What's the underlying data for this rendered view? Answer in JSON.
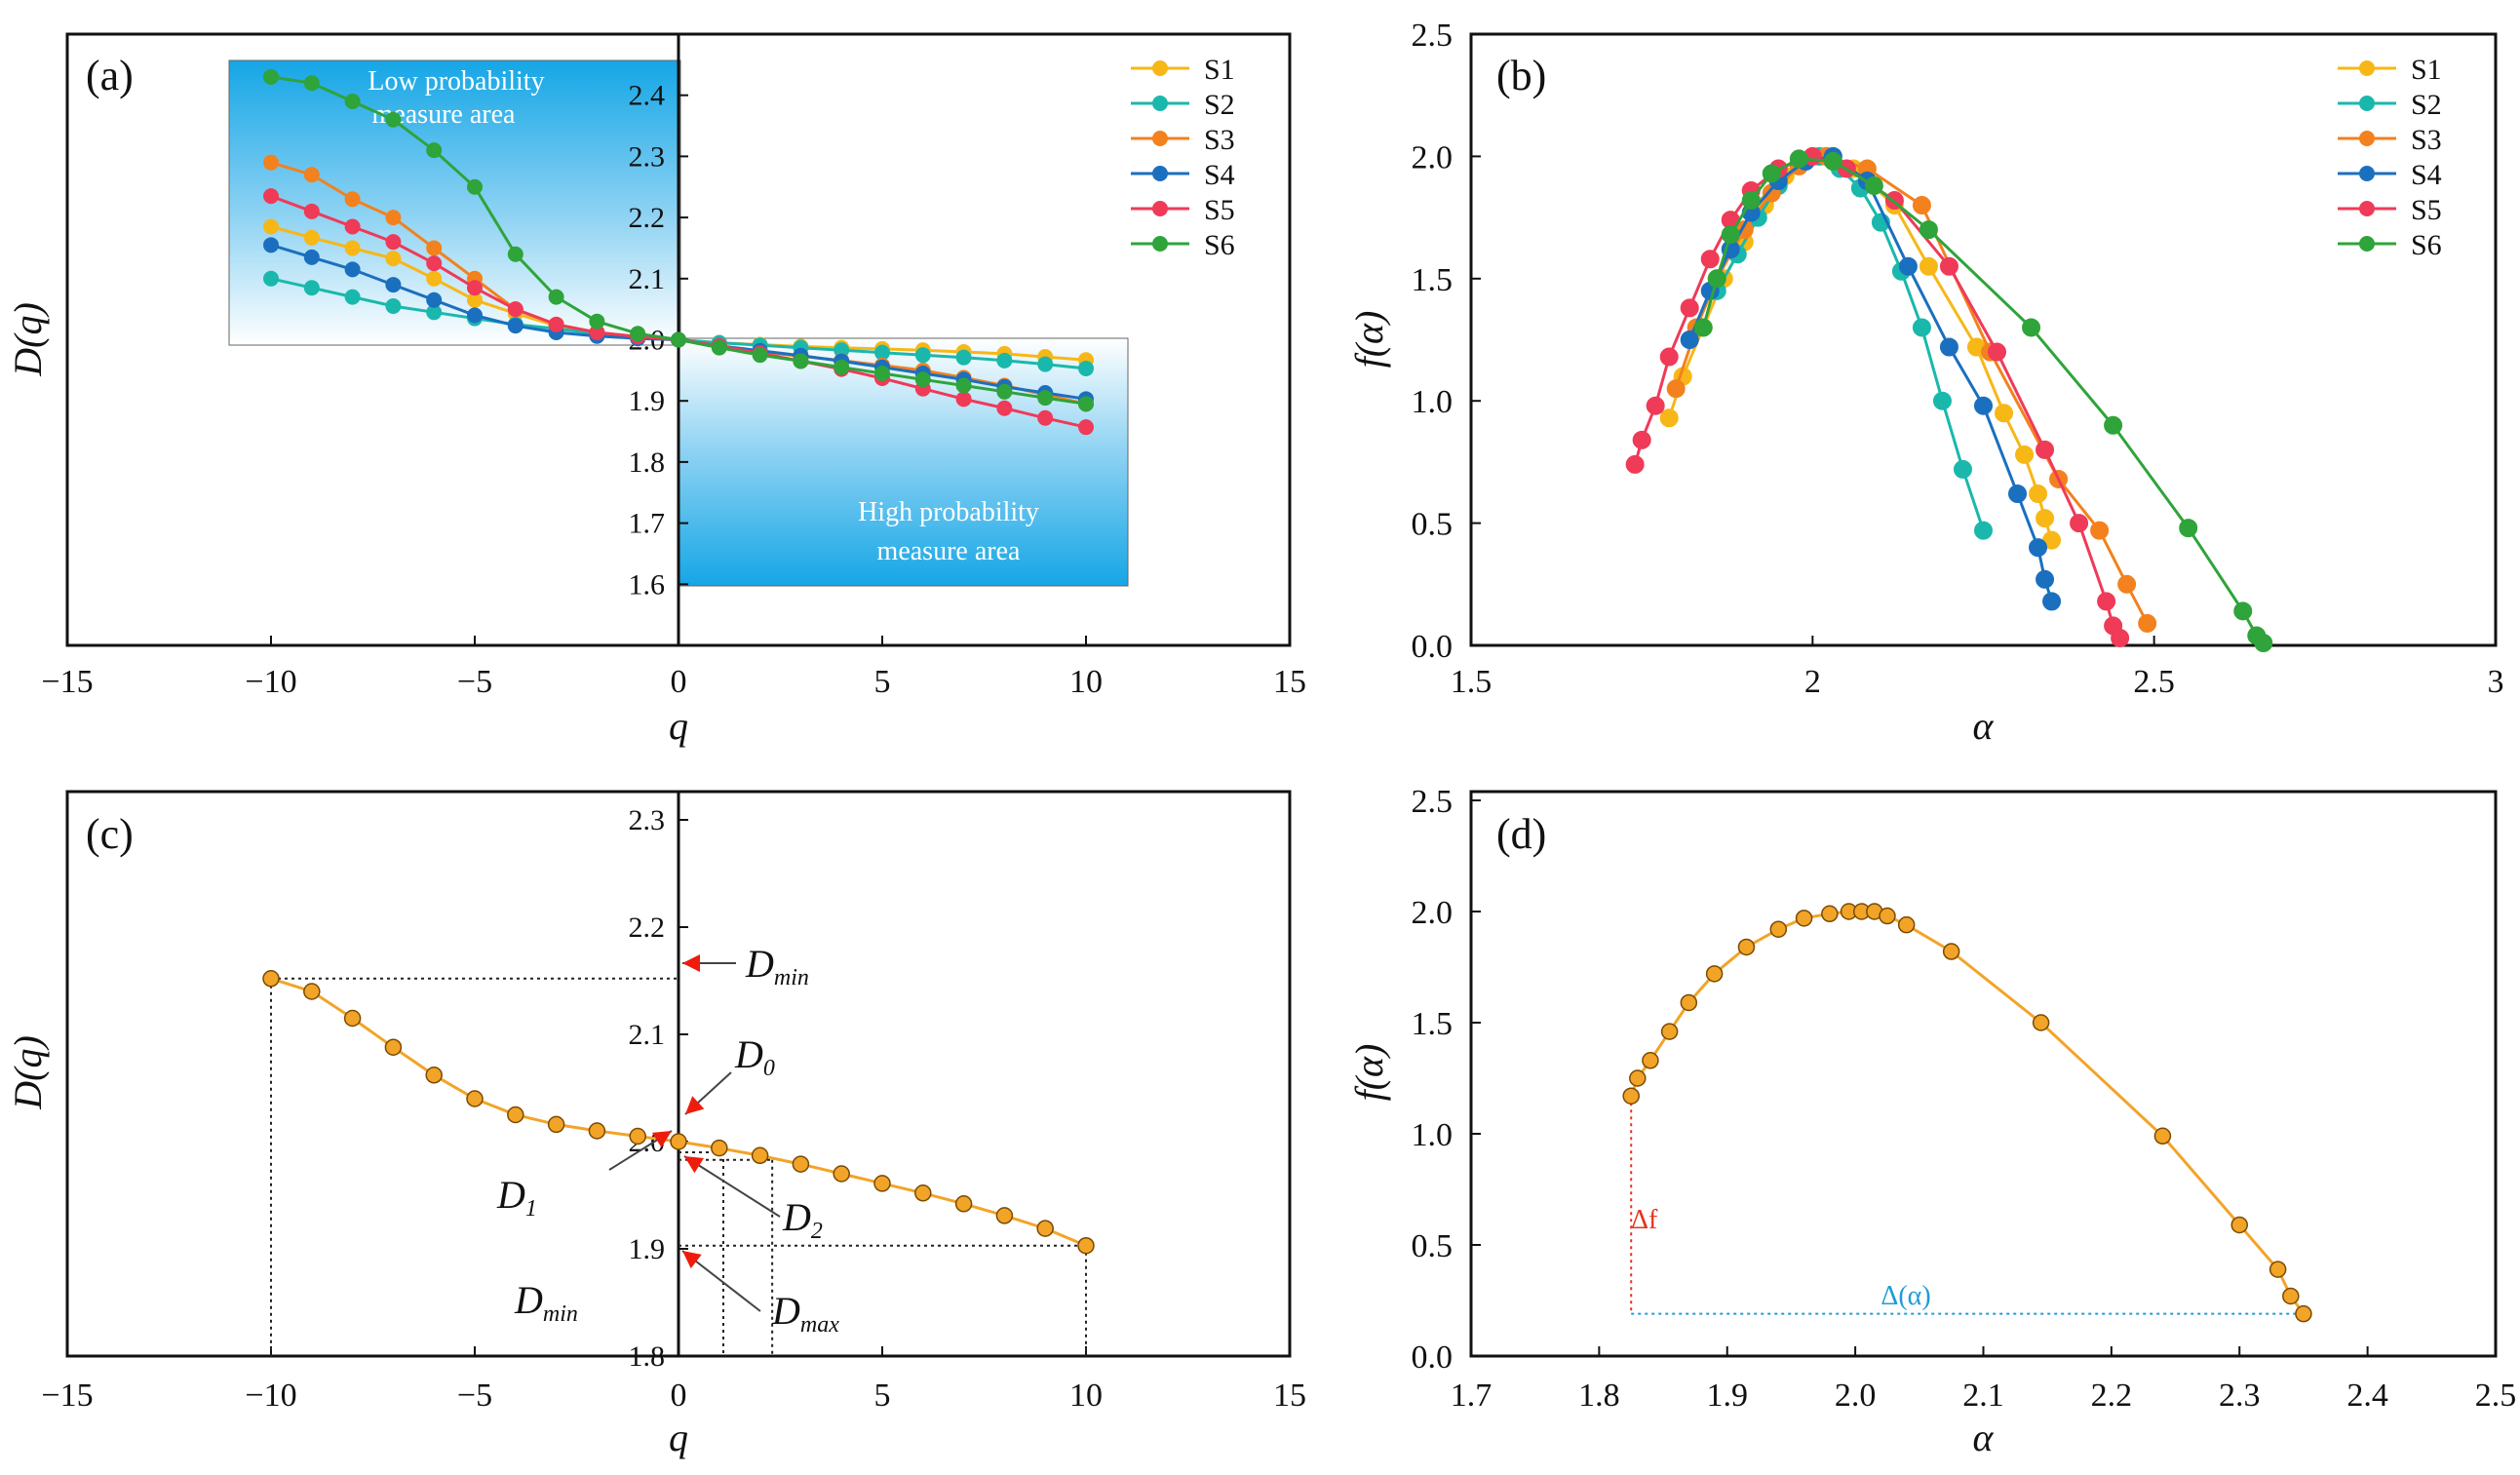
{
  "colors": {
    "S1": "#f7b717",
    "S2": "#1ab8ac",
    "S3": "#f3811e",
    "S4": "#1b6fbf",
    "S5": "#ef3a58",
    "S6": "#2ea43a",
    "single": "#f2a428",
    "arrow": "#ee1c0c",
    "df": "#e8321c",
    "dalpha": "#1f9bd8"
  },
  "chart_data": [
    {
      "panel": "(a)",
      "type": "line",
      "xlabel": "q",
      "ylabel": "D(q)",
      "xlim": [
        -15,
        15
      ],
      "ylim": [
        1.5,
        2.5
      ],
      "xticks": [
        "−15",
        "−10",
        "−5",
        "0",
        "5",
        "10",
        "15"
      ],
      "inner_yticks": [
        "1.6",
        "1.7",
        "1.8",
        "1.9",
        "2.0",
        "2.1",
        "2.2",
        "2.3",
        "2.4"
      ],
      "annotations": [
        "Low probability",
        "measure area",
        "High probability",
        "measure area"
      ],
      "x": [
        -10,
        -9,
        -8,
        -7,
        -6,
        -5,
        -4,
        -3,
        -2,
        -1,
        0,
        1,
        2,
        3,
        4,
        5,
        6,
        7,
        8,
        9,
        10
      ],
      "series": [
        {
          "name": "S1",
          "values": [
            2.185,
            2.167,
            2.15,
            2.133,
            2.1,
            2.065,
            2.043,
            2.023,
            2.012,
            2.005,
            2.0,
            1.995,
            1.992,
            1.989,
            1.987,
            1.985,
            1.983,
            1.98,
            1.977,
            1.972,
            1.967
          ]
        },
        {
          "name": "S2",
          "values": [
            2.1,
            2.085,
            2.07,
            2.055,
            2.045,
            2.035,
            2.025,
            2.018,
            2.01,
            2.004,
            2.0,
            1.995,
            1.991,
            1.987,
            1.983,
            1.979,
            1.975,
            1.971,
            1.966,
            1.96,
            1.953
          ]
        },
        {
          "name": "S3",
          "values": [
            2.29,
            2.27,
            2.23,
            2.2,
            2.15,
            2.1,
            2.05,
            2.025,
            2.012,
            2.005,
            2.0,
            1.99,
            1.98,
            1.973,
            1.966,
            1.958,
            1.95,
            1.938,
            1.925,
            1.91,
            1.895
          ]
        },
        {
          "name": "S4",
          "values": [
            2.155,
            2.135,
            2.115,
            2.09,
            2.065,
            2.04,
            2.023,
            2.012,
            2.006,
            2.002,
            2.0,
            1.99,
            1.982,
            1.974,
            1.965,
            1.955,
            1.945,
            1.935,
            1.923,
            1.913,
            1.903
          ]
        },
        {
          "name": "S5",
          "values": [
            2.235,
            2.21,
            2.185,
            2.16,
            2.125,
            2.085,
            2.05,
            2.025,
            2.012,
            2.005,
            2.0,
            1.99,
            1.978,
            1.965,
            1.952,
            1.937,
            1.92,
            1.903,
            1.888,
            1.872,
            1.857
          ]
        },
        {
          "name": "S6",
          "values": [
            2.43,
            2.42,
            2.39,
            2.36,
            2.31,
            2.25,
            2.14,
            2.07,
            2.03,
            2.01,
            2.0,
            1.987,
            1.975,
            1.965,
            1.955,
            1.945,
            1.935,
            1.925,
            1.915,
            1.905,
            1.895
          ]
        }
      ]
    },
    {
      "panel": "(b)",
      "type": "line",
      "xlabel": "α",
      "ylabel": "f(α)",
      "xlim": [
        1.5,
        3
      ],
      "ylim": [
        0,
        2.5
      ],
      "xticks": [
        "1.5",
        "2",
        "2.5",
        "3"
      ],
      "yticks": [
        "0.0",
        "0.5",
        "1.0",
        "1.5",
        "2.0",
        "2.5"
      ],
      "series": [
        {
          "name": "S1",
          "x": [
            1.79,
            1.81,
            1.84,
            1.87,
            1.9,
            1.93,
            1.96,
            1.99,
            2.02,
            2.06,
            2.12,
            2.17,
            2.24,
            2.28,
            2.31,
            2.33,
            2.34,
            2.35
          ],
          "y": [
            0.93,
            1.1,
            1.3,
            1.5,
            1.65,
            1.8,
            1.92,
            1.98,
            2.0,
            1.95,
            1.8,
            1.55,
            1.22,
            0.95,
            0.78,
            0.62,
            0.52,
            0.43
          ]
        },
        {
          "name": "S2",
          "x": [
            1.86,
            1.89,
            1.92,
            1.95,
            1.98,
            2.01,
            2.04,
            2.07,
            2.1,
            2.13,
            2.16,
            2.19,
            2.22,
            2.25
          ],
          "y": [
            1.45,
            1.6,
            1.75,
            1.88,
            1.97,
            2.0,
            1.95,
            1.87,
            1.73,
            1.53,
            1.3,
            1.0,
            0.72,
            0.47
          ]
        },
        {
          "name": "S3",
          "x": [
            1.8,
            1.83,
            1.86,
            1.9,
            1.94,
            1.98,
            2.02,
            2.08,
            2.16,
            2.26,
            2.36,
            2.42,
            2.46,
            2.49
          ],
          "y": [
            1.05,
            1.3,
            1.5,
            1.7,
            1.85,
            1.96,
            2.0,
            1.95,
            1.8,
            1.2,
            0.68,
            0.47,
            0.25,
            0.09
          ]
        },
        {
          "name": "S4",
          "x": [
            1.82,
            1.85,
            1.88,
            1.91,
            1.95,
            1.99,
            2.03,
            2.08,
            2.14,
            2.2,
            2.25,
            2.3,
            2.33,
            2.34,
            2.35
          ],
          "y": [
            1.25,
            1.45,
            1.62,
            1.77,
            1.9,
            1.98,
            2.0,
            1.9,
            1.55,
            1.22,
            0.98,
            0.62,
            0.4,
            0.27,
            0.18
          ]
        },
        {
          "name": "S5",
          "x": [
            1.74,
            1.75,
            1.77,
            1.79,
            1.82,
            1.85,
            1.88,
            1.91,
            1.95,
            2.0,
            2.05,
            2.12,
            2.2,
            2.27,
            2.34,
            2.39,
            2.43,
            2.44,
            2.45
          ],
          "y": [
            0.74,
            0.84,
            0.98,
            1.18,
            1.38,
            1.58,
            1.74,
            1.86,
            1.95,
            2.0,
            1.95,
            1.82,
            1.55,
            1.2,
            0.8,
            0.5,
            0.18,
            0.08,
            0.03
          ]
        },
        {
          "name": "S6",
          "x": [
            1.84,
            1.86,
            1.88,
            1.91,
            1.94,
            1.98,
            2.03,
            2.09,
            2.17,
            2.32,
            2.44,
            2.55,
            2.63,
            2.65,
            2.66
          ],
          "y": [
            1.3,
            1.5,
            1.68,
            1.82,
            1.93,
            1.99,
            1.98,
            1.88,
            1.7,
            1.3,
            0.9,
            0.48,
            0.14,
            0.04,
            0.01
          ]
        }
      ]
    },
    {
      "panel": "(c)",
      "type": "line",
      "xlabel": "q",
      "ylabel": "D(q)",
      "xlim": [
        -15,
        15
      ],
      "ylim": [
        1.8,
        2.33
      ],
      "xticks": [
        "−15",
        "−10",
        "−5",
        "0",
        "5",
        "10",
        "15"
      ],
      "inner_yticks": [
        "1.8",
        "1.9",
        "2.0",
        "2.1",
        "2.2",
        "2.3"
      ],
      "x": [
        -10,
        -9,
        -8,
        -7,
        -6,
        -5,
        -4,
        -3,
        -2,
        -1,
        0,
        1,
        2,
        3,
        4,
        5,
        6,
        7,
        8,
        9,
        10
      ],
      "values": [
        2.152,
        2.14,
        2.115,
        2.088,
        2.062,
        2.04,
        2.025,
        2.016,
        2.01,
        2.005,
        2.0,
        1.994,
        1.987,
        1.979,
        1.97,
        1.961,
        1.952,
        1.942,
        1.931,
        1.919,
        1.903
      ],
      "labels": {
        "dmin_top": "D",
        "dmin_top_sub": "min",
        "d0": "D",
        "d0_sub": "0",
        "d1": "D",
        "d1_sub": "1",
        "d2": "D",
        "d2_sub": "2",
        "dmax": "D",
        "dmax_sub": "max",
        "dmin_bottom": "D",
        "dmin_bottom_sub": "min"
      }
    },
    {
      "panel": "(d)",
      "type": "line",
      "xlabel": "α",
      "ylabel": "f(α)",
      "xlim": [
        1.7,
        2.5
      ],
      "ylim": [
        0,
        2.5
      ],
      "xticks": [
        "1.7",
        "1.8",
        "1.9",
        "2.0",
        "2.1",
        "2.2",
        "2.3",
        "2.4",
        "2.5"
      ],
      "yticks": [
        "0.0",
        "0.5",
        "1.0",
        "1.5",
        "2.0",
        "2.5"
      ],
      "x": [
        1.825,
        1.83,
        1.84,
        1.855,
        1.87,
        1.89,
        1.915,
        1.94,
        1.96,
        1.98,
        1.995,
        2.005,
        2.015,
        2.025,
        2.04,
        2.075,
        2.145,
        2.24,
        2.3,
        2.33,
        2.34,
        2.35
      ],
      "y": [
        1.17,
        1.25,
        1.33,
        1.46,
        1.59,
        1.72,
        1.84,
        1.92,
        1.97,
        1.99,
        2.0,
        2.0,
        2.0,
        1.98,
        1.94,
        1.82,
        1.5,
        0.99,
        0.59,
        0.39,
        0.27,
        0.19
      ],
      "labels": {
        "df": "Δf",
        "dalpha": "Δ(α)"
      }
    }
  ],
  "panel_labels": {
    "a": "(a)",
    "b": "(b)",
    "c": "(c)",
    "d": "(d)"
  },
  "axis_titles": {
    "a_x": "q",
    "a_y": "D(q)",
    "b_x": "α",
    "b_y": "f(α)",
    "c_x": "q",
    "c_y": "D(q)",
    "d_x": "α",
    "d_y": "f(α)"
  },
  "legend": [
    "S1",
    "S2",
    "S3",
    "S4",
    "S5",
    "S6"
  ]
}
